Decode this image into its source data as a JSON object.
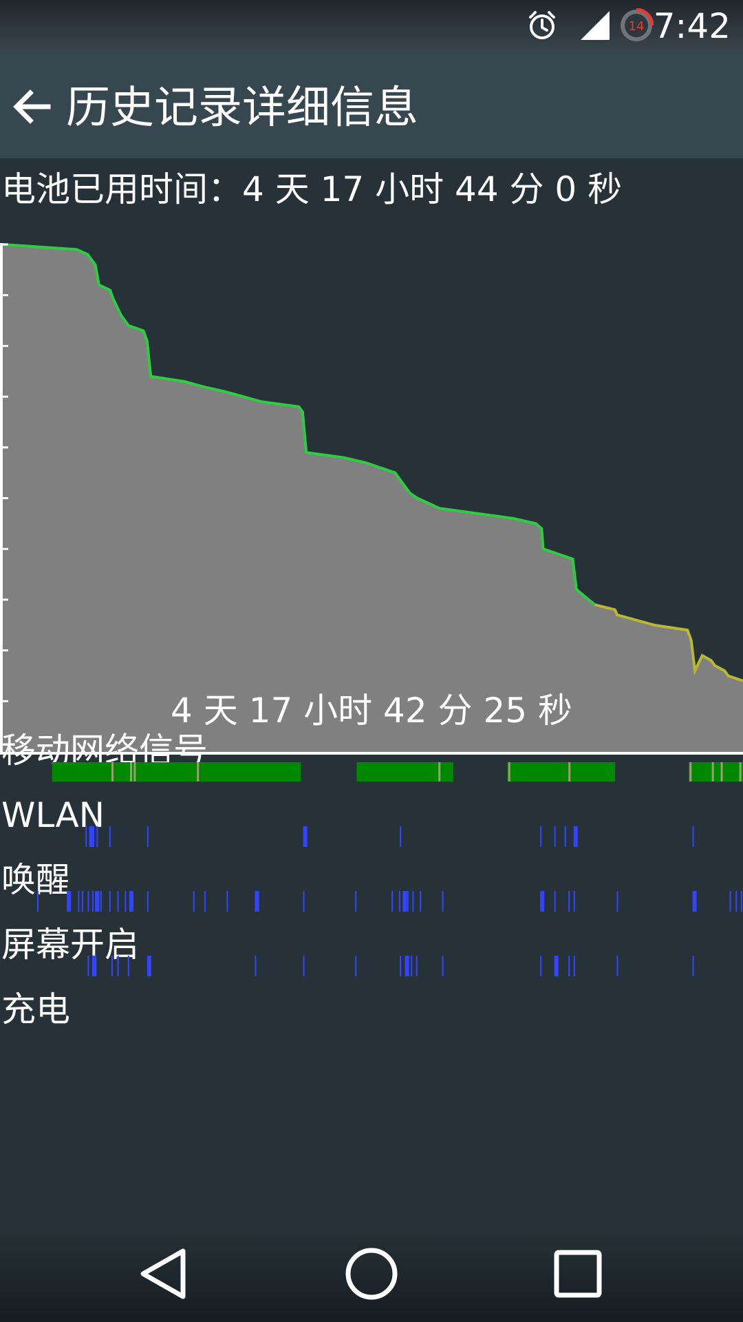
{
  "status_bar": {
    "time": "7:42",
    "icons": [
      "alarm-icon",
      "cell-signal-icon",
      "notification-count-icon"
    ],
    "notification_count": "14",
    "accent": "#e53935"
  },
  "app_bar": {
    "title": "历史记录详细信息"
  },
  "battery": {
    "time_on_battery": "电池已用时间：4 天 17 小时 44 分 0 秒",
    "chart_end_label": "4 天 17 小时 42 分 25 秒",
    "line_color_good": "#2ecc40",
    "line_color_mid": "#b8b833",
    "fill_color": "#808080"
  },
  "chart_data": {
    "type": "area",
    "x_unit": "fraction of elapsed time",
    "y_unit": "battery percent",
    "ylim": [
      0,
      100
    ],
    "points": [
      [
        0.0,
        100
      ],
      [
        0.1,
        99
      ],
      [
        0.115,
        98
      ],
      [
        0.125,
        96
      ],
      [
        0.13,
        92
      ],
      [
        0.145,
        91
      ],
      [
        0.15,
        89
      ],
      [
        0.16,
        86
      ],
      [
        0.17,
        84
      ],
      [
        0.19,
        83
      ],
      [
        0.195,
        81
      ],
      [
        0.2,
        74
      ],
      [
        0.245,
        73
      ],
      [
        0.27,
        72
      ],
      [
        0.3,
        71
      ],
      [
        0.325,
        70
      ],
      [
        0.35,
        69
      ],
      [
        0.4,
        68
      ],
      [
        0.405,
        67
      ],
      [
        0.41,
        59
      ],
      [
        0.46,
        58
      ],
      [
        0.49,
        57
      ],
      [
        0.51,
        56
      ],
      [
        0.53,
        55
      ],
      [
        0.54,
        53
      ],
      [
        0.55,
        51
      ],
      [
        0.56,
        50
      ],
      [
        0.59,
        48
      ],
      [
        0.64,
        47
      ],
      [
        0.69,
        46
      ],
      [
        0.72,
        45
      ],
      [
        0.728,
        44
      ],
      [
        0.73,
        40
      ],
      [
        0.77,
        38
      ],
      [
        0.775,
        32
      ],
      [
        0.8,
        29
      ],
      [
        0.827,
        28
      ],
      [
        0.83,
        27
      ],
      [
        0.88,
        25
      ],
      [
        0.925,
        24
      ],
      [
        0.93,
        22
      ],
      [
        0.935,
        16
      ],
      [
        0.945,
        19
      ],
      [
        0.957,
        18
      ],
      [
        0.962,
        17
      ],
      [
        0.975,
        16
      ],
      [
        0.98,
        15
      ],
      [
        1.0,
        14
      ]
    ],
    "color_change_at": 0.8
  },
  "tracks": [
    {
      "label": "移动网络信号",
      "type": "signal",
      "color": "#008800",
      "segments": [
        [
          0.07,
          0.405
        ],
        [
          0.48,
          0.61
        ],
        [
          0.683,
          0.828
        ],
        [
          0.927,
          1.0
        ]
      ],
      "markers": [
        0.15,
        0.175,
        0.18,
        0.265,
        0.59,
        0.684,
        0.765,
        0.928,
        0.958,
        0.97,
        0.995
      ]
    },
    {
      "label": "WLAN",
      "type": "ticks",
      "color": "#3344ff",
      "ticks": [
        0.115,
        0.12,
        0.125,
        0.13,
        0.147,
        0.198,
        0.408,
        0.538,
        0.727,
        0.746,
        0.76,
        0.772,
        0.932
      ]
    },
    {
      "label": "唤醒",
      "type": "ticks",
      "color": "#3344ff",
      "ticks": [
        0.05,
        0.09,
        0.105,
        0.11,
        0.118,
        0.124,
        0.128,
        0.135,
        0.147,
        0.158,
        0.168,
        0.174,
        0.198,
        0.26,
        0.275,
        0.305,
        0.343,
        0.408,
        0.478,
        0.527,
        0.537,
        0.542,
        0.548,
        0.555,
        0.565,
        0.595,
        0.727,
        0.746,
        0.765,
        0.772,
        0.83,
        0.932,
        0.982,
        0.99,
        0.997
      ]
    },
    {
      "label": "屏幕开启",
      "type": "ticks",
      "color": "#3344ff",
      "ticks": [
        0.118,
        0.124,
        0.128,
        0.15,
        0.158,
        0.172,
        0.198,
        0.343,
        0.408,
        0.478,
        0.538,
        0.545,
        0.553,
        0.56,
        0.595,
        0.727,
        0.746,
        0.765,
        0.772,
        0.83,
        0.932
      ]
    },
    {
      "label": "充电",
      "type": "ticks",
      "color": "#3344ff",
      "ticks": []
    }
  ],
  "nav_bar": {
    "buttons": [
      "back-triangle-icon",
      "home-circle-icon",
      "recents-square-icon"
    ]
  }
}
